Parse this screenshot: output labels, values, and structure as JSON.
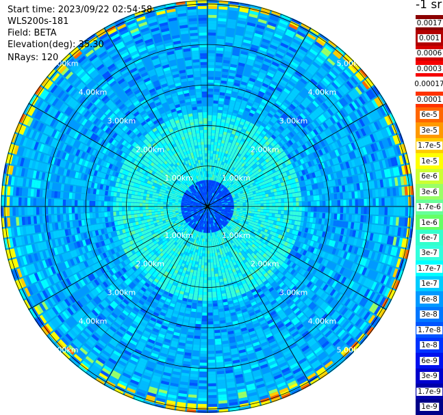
{
  "info": {
    "start_time": "Start time: 2023/09/22 02:54:58",
    "device": "WLS200s-181",
    "field": "Field: BETA",
    "elevation": "Elevation(deg): 35.30",
    "nrays": "NRays: 120"
  },
  "colorbar": {
    "title": "-1 sr",
    "levels": [
      {
        "label": "0.0017",
        "color": "#8b0000"
      },
      {
        "label": "0.001",
        "color": "#b20000"
      },
      {
        "label": "0.0006",
        "color": "#d40000"
      },
      {
        "label": "0.0003",
        "color": "#f50000"
      },
      {
        "label": "0.00017",
        "color": "#ffffff"
      },
      {
        "label": "0.0001",
        "color": "#ff3300"
      },
      {
        "label": "6e-5",
        "color": "#ff6600"
      },
      {
        "label": "3e-5",
        "color": "#ff9900"
      },
      {
        "label": "1.7e-5",
        "color": "#ffcc00"
      },
      {
        "label": "1e-5",
        "color": "#ffff00"
      },
      {
        "label": "6e-6",
        "color": "#ccff33"
      },
      {
        "label": "3e-6",
        "color": "#99ff66"
      },
      {
        "label": "1.7e-6",
        "color": "#66ff99"
      },
      {
        "label": "1e-6",
        "color": "#66ff66"
      },
      {
        "label": "6e-7",
        "color": "#33ffcc"
      },
      {
        "label": "3e-7",
        "color": "#33ffdd"
      },
      {
        "label": "1.7e-7",
        "color": "#00ffff"
      },
      {
        "label": "1e-7",
        "color": "#00ccff"
      },
      {
        "label": "6e-8",
        "color": "#0099ff"
      },
      {
        "label": "3e-8",
        "color": "#0077ff"
      },
      {
        "label": "1.7e-8",
        "color": "#0055ff"
      },
      {
        "label": "1e-8",
        "color": "#0033ff"
      },
      {
        "label": "6e-9",
        "color": "#0011ee"
      },
      {
        "label": "3e-9",
        "color": "#0000cc"
      },
      {
        "label": "1.7e-9",
        "color": "#0000aa"
      },
      {
        "label": "1e-9",
        "color": "#000088"
      }
    ]
  },
  "ppi": {
    "range_rings": [
      {
        "label": "1.00km",
        "km": 1
      },
      {
        "label": "2.00km",
        "km": 2
      },
      {
        "label": "3.00km",
        "km": 3
      },
      {
        "label": "4.00km",
        "km": 4
      },
      {
        "label": "5.00km",
        "km": 5
      }
    ],
    "n_rays": 120,
    "spoke_step_deg": 30,
    "max_range_km": 5.1
  }
}
